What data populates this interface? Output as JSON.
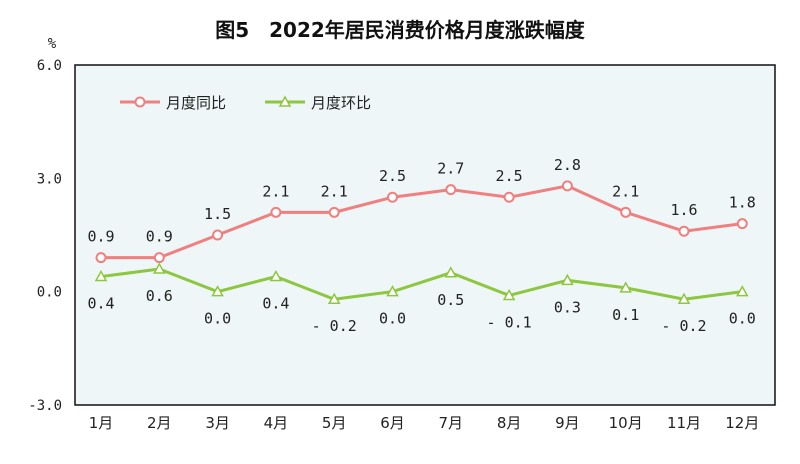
{
  "chart_data": {
    "type": "line",
    "title": "图5　2022年居民消费价格月度涨跌幅度",
    "ylabel": "%",
    "categories": [
      "1月",
      "2月",
      "3月",
      "4月",
      "5月",
      "6月",
      "7月",
      "8月",
      "9月",
      "10月",
      "11月",
      "12月"
    ],
    "ylim": [
      -3.0,
      6.0
    ],
    "yticks": [
      "-3.0",
      "0.0",
      "3.0",
      "6.0"
    ],
    "grid": false,
    "legend": "top-left",
    "series": [
      {
        "name": "月度同比",
        "color": "#f07f7f",
        "marker": "circle",
        "values": [
          0.9,
          0.9,
          1.5,
          2.1,
          2.1,
          2.5,
          2.7,
          2.5,
          2.8,
          2.1,
          1.6,
          1.8
        ]
      },
      {
        "name": "月度环比",
        "color": "#8dc63f",
        "marker": "triangle",
        "values": [
          0.4,
          0.6,
          0.0,
          0.4,
          -0.2,
          0.0,
          0.5,
          -0.1,
          0.3,
          0.1,
          -0.2,
          0.0
        ]
      }
    ],
    "plot_background": "#eef6f7"
  }
}
